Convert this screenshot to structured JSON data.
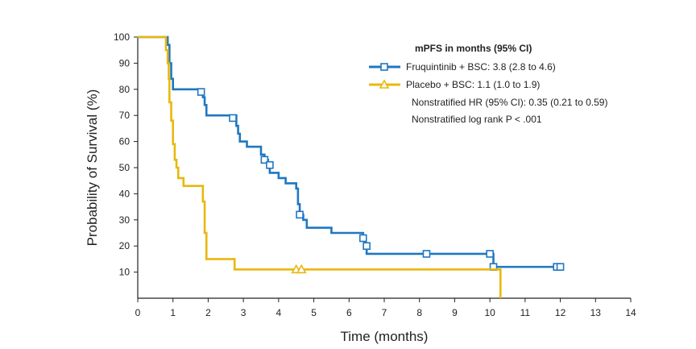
{
  "chart_data": {
    "type": "line",
    "step": true,
    "xlabel": "Time (months)",
    "ylabel": "Probability of Survival (%)",
    "xlim": [
      0,
      14
    ],
    "ylim": [
      0,
      100
    ],
    "x_ticks": [
      0,
      1,
      2,
      3,
      4,
      5,
      6,
      7,
      8,
      9,
      10,
      11,
      12,
      13,
      14
    ],
    "y_ticks": [
      10,
      20,
      30,
      40,
      50,
      60,
      70,
      80,
      90,
      100
    ],
    "grid": false,
    "legend": {
      "title": "mPFS in months (95% CI)",
      "position": "top-right",
      "notes": [
        "Nonstratified HR (95% CI): 0.35 (0.21 to 0.59)",
        "Nonstratified log rank P < .001"
      ]
    },
    "series": [
      {
        "name": "Fruquintinib + BSC: 3.8 (2.8 to 4.6)",
        "color": "#1f77c1",
        "marker": "square",
        "steps": [
          [
            0,
            100
          ],
          [
            0.8,
            100
          ],
          [
            0.85,
            97
          ],
          [
            0.9,
            90
          ],
          [
            0.95,
            84
          ],
          [
            1.0,
            80
          ],
          [
            1.8,
            80
          ],
          [
            1.85,
            77
          ],
          [
            1.9,
            74
          ],
          [
            1.95,
            70
          ],
          [
            2.7,
            70
          ],
          [
            2.8,
            66
          ],
          [
            2.85,
            63
          ],
          [
            2.9,
            60
          ],
          [
            3.1,
            58
          ],
          [
            3.5,
            55
          ],
          [
            3.6,
            53
          ],
          [
            3.7,
            50
          ],
          [
            3.75,
            48
          ],
          [
            4.0,
            46
          ],
          [
            4.2,
            44
          ],
          [
            4.5,
            42
          ],
          [
            4.55,
            36
          ],
          [
            4.6,
            32
          ],
          [
            4.7,
            30
          ],
          [
            4.8,
            27
          ],
          [
            5.0,
            27
          ],
          [
            5.3,
            27
          ],
          [
            5.5,
            25
          ],
          [
            5.8,
            25
          ],
          [
            6.3,
            25
          ],
          [
            6.4,
            23
          ],
          [
            6.45,
            20
          ],
          [
            6.5,
            17
          ],
          [
            8.0,
            17
          ],
          [
            9.9,
            17
          ],
          [
            10.0,
            17
          ],
          [
            10.1,
            12
          ],
          [
            12.0,
            12
          ]
        ],
        "censored": [
          [
            1.8,
            79
          ],
          [
            2.7,
            69
          ],
          [
            3.6,
            53
          ],
          [
            3.75,
            51
          ],
          [
            4.6,
            32
          ],
          [
            6.4,
            23
          ],
          [
            6.5,
            20
          ],
          [
            8.2,
            17
          ],
          [
            10.0,
            17
          ],
          [
            10.1,
            12
          ],
          [
            11.9,
            12
          ],
          [
            12.0,
            12
          ]
        ]
      },
      {
        "name": "Placebo + BSC: 1.1 (1.0 to 1.9)",
        "color": "#e9b80c",
        "marker": "triangle",
        "steps": [
          [
            0,
            100
          ],
          [
            0.75,
            100
          ],
          [
            0.8,
            95
          ],
          [
            0.85,
            90
          ],
          [
            0.88,
            84
          ],
          [
            0.9,
            75
          ],
          [
            0.95,
            68
          ],
          [
            1.0,
            59
          ],
          [
            1.05,
            53
          ],
          [
            1.1,
            50
          ],
          [
            1.15,
            46
          ],
          [
            1.3,
            43
          ],
          [
            1.8,
            43
          ],
          [
            1.85,
            37
          ],
          [
            1.9,
            25
          ],
          [
            1.95,
            15
          ],
          [
            2.7,
            15
          ],
          [
            2.75,
            11
          ],
          [
            10.3,
            11
          ],
          [
            10.3,
            0
          ]
        ],
        "censored": [
          [
            4.5,
            11
          ],
          [
            4.65,
            11
          ]
        ]
      }
    ]
  }
}
